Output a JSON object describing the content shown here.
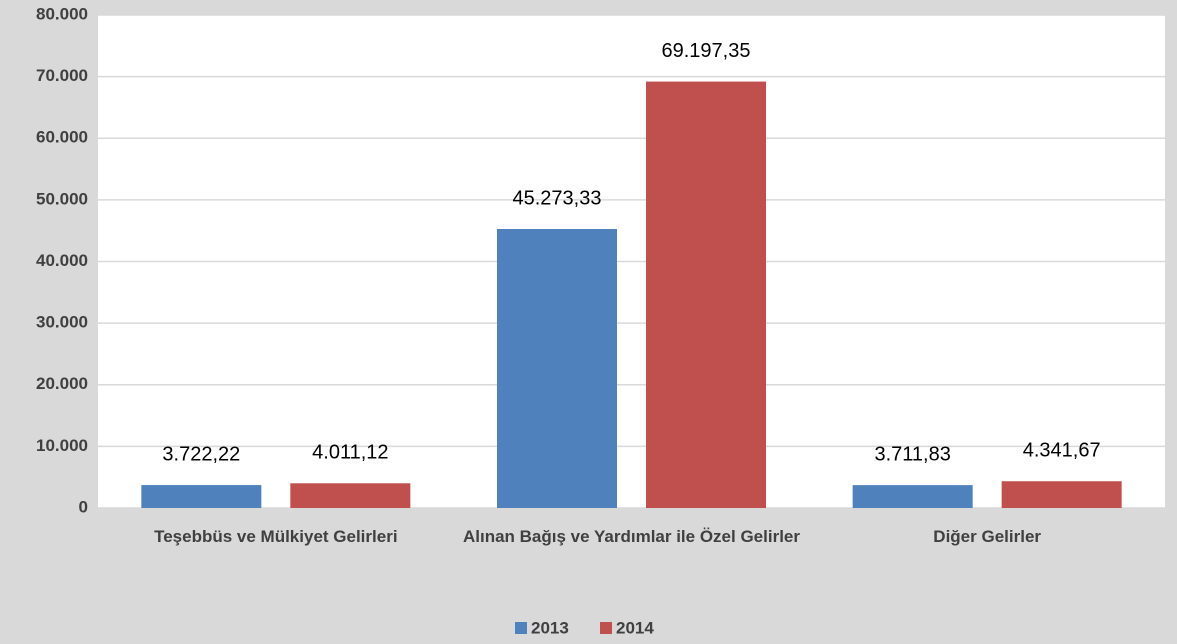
{
  "chart_data": {
    "type": "bar",
    "categories": [
      "Teşebbüs ve Mülkiyet  Gelirleri",
      "Alınan Bağış ve Yardımlar ile Özel Gelirler",
      "Diğer Gelirler"
    ],
    "series": [
      {
        "name": "2013",
        "color": "#4f81bd",
        "values": [
          3722.22,
          45273.33,
          3711.83
        ],
        "value_labels": [
          "3.722,22",
          "45.273,33",
          "3.711,83"
        ]
      },
      {
        "name": "2014",
        "color": "#c0504d",
        "values": [
          4011.12,
          69197.35,
          4341.67
        ],
        "value_labels": [
          "4.011,12",
          "69.197,35",
          "4.341,67"
        ]
      }
    ],
    "ylim": [
      0,
      80000
    ],
    "yticks": [
      {
        "value": 0,
        "label": "0"
      },
      {
        "value": 10000,
        "label": "10.000"
      },
      {
        "value": 20000,
        "label": "20.000"
      },
      {
        "value": 30000,
        "label": "30.000"
      },
      {
        "value": 40000,
        "label": "40.000"
      },
      {
        "value": 50000,
        "label": "50.000"
      },
      {
        "value": 60000,
        "label": "60.000"
      },
      {
        "value": 70000,
        "label": "70.000"
      },
      {
        "value": 80000,
        "label": "80.000"
      }
    ],
    "grid": true,
    "legend": "bottom"
  }
}
